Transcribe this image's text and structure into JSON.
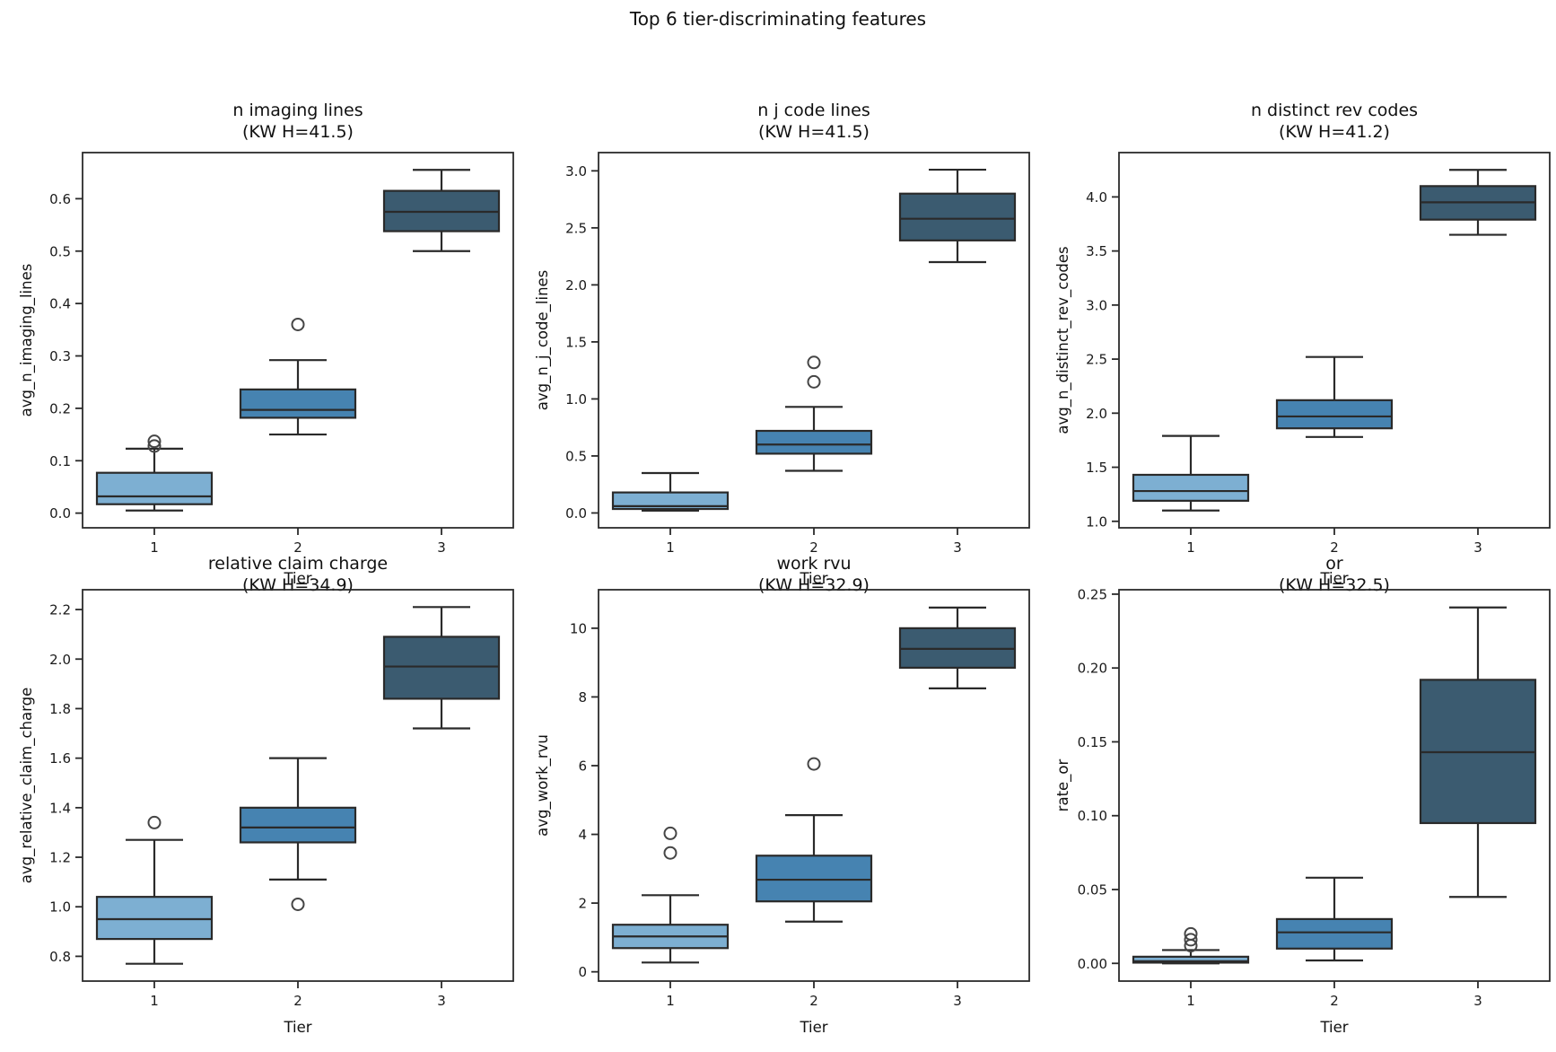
{
  "figure": {
    "title": "Top 6 tier-discriminating features",
    "background": "#ffffff",
    "text_color": "#1a1a1a",
    "spine_color": "#2b2b2b"
  },
  "chart_data": {
    "type": "box",
    "suptitle": "Top 6 tier-discriminating features",
    "layout": "2x3 grid",
    "categories": [
      "1",
      "2",
      "3"
    ],
    "xlabel": "Tier",
    "palette": [
      "#7dafd2",
      "#4683b1",
      "#3b5b70"
    ],
    "edge_color": "#2a2a2a",
    "flier_color": "#454545",
    "grid": false,
    "plots": [
      {
        "title": "n imaging lines",
        "subtitle": "(KW H=41.5)",
        "kw_h": 41.5,
        "ylabel": "avg_n_imaging_lines",
        "xlabel": "Tier",
        "ylim": [
          -0.028,
          0.688
        ],
        "yticks": [
          0.0,
          0.1,
          0.2,
          0.3,
          0.4,
          0.5,
          0.6
        ],
        "ytick_labels": [
          "0.0",
          "0.1",
          "0.2",
          "0.3",
          "0.4",
          "0.5",
          "0.6"
        ],
        "boxes": [
          {
            "category": "1",
            "whislo": 0.005,
            "q1": 0.017,
            "med": 0.032,
            "q3": 0.077,
            "whishi": 0.123,
            "outliers": [
              0.128,
              0.137
            ]
          },
          {
            "category": "2",
            "whislo": 0.15,
            "q1": 0.182,
            "med": 0.197,
            "q3": 0.236,
            "whishi": 0.292,
            "outliers": [
              0.36
            ]
          },
          {
            "category": "3",
            "whislo": 0.5,
            "q1": 0.538,
            "med": 0.575,
            "q3": 0.615,
            "whishi": 0.655,
            "outliers": []
          }
        ]
      },
      {
        "title": "n j code lines",
        "subtitle": "(KW H=41.5)",
        "kw_h": 41.5,
        "ylabel": "avg_n_j_code_lines",
        "xlabel": "Tier",
        "ylim": [
          -0.13,
          3.16
        ],
        "yticks": [
          0.0,
          0.5,
          1.0,
          1.5,
          2.0,
          2.5,
          3.0
        ],
        "ytick_labels": [
          "0.0",
          "0.5",
          "1.0",
          "1.5",
          "2.0",
          "2.5",
          "3.0"
        ],
        "boxes": [
          {
            "category": "1",
            "whislo": 0.02,
            "q1": 0.035,
            "med": 0.06,
            "q3": 0.18,
            "whishi": 0.35,
            "outliers": []
          },
          {
            "category": "2",
            "whislo": 0.37,
            "q1": 0.52,
            "med": 0.6,
            "q3": 0.72,
            "whishi": 0.93,
            "outliers": [
              1.15,
              1.32
            ]
          },
          {
            "category": "3",
            "whislo": 2.2,
            "q1": 2.39,
            "med": 2.58,
            "q3": 2.8,
            "whishi": 3.01,
            "outliers": []
          }
        ]
      },
      {
        "title": "n distinct rev codes",
        "subtitle": "(KW H=41.2)",
        "kw_h": 41.2,
        "ylabel": "avg_n_distinct_rev_codes",
        "xlabel": "Tier",
        "ylim": [
          0.94,
          4.41
        ],
        "yticks": [
          1.0,
          1.5,
          2.0,
          2.5,
          3.0,
          3.5,
          4.0
        ],
        "ytick_labels": [
          "1.0",
          "1.5",
          "2.0",
          "2.5",
          "3.0",
          "3.5",
          "4.0"
        ],
        "boxes": [
          {
            "category": "1",
            "whislo": 1.1,
            "q1": 1.19,
            "med": 1.28,
            "q3": 1.43,
            "whishi": 1.79,
            "outliers": []
          },
          {
            "category": "2",
            "whislo": 1.78,
            "q1": 1.86,
            "med": 1.97,
            "q3": 2.12,
            "whishi": 2.52,
            "outliers": []
          },
          {
            "category": "3",
            "whislo": 3.65,
            "q1": 3.79,
            "med": 3.95,
            "q3": 4.1,
            "whishi": 4.25,
            "outliers": []
          }
        ]
      },
      {
        "title": "relative claim charge",
        "subtitle": "(KW H=34.9)",
        "kw_h": 34.9,
        "ylabel": "avg_relative_claim_charge",
        "xlabel": "Tier",
        "ylim": [
          0.7,
          2.28
        ],
        "yticks": [
          0.8,
          1.0,
          1.2,
          1.4,
          1.6,
          1.8,
          2.0,
          2.2
        ],
        "ytick_labels": [
          "0.8",
          "1.0",
          "1.2",
          "1.4",
          "1.6",
          "1.8",
          "2.0",
          "2.2"
        ],
        "boxes": [
          {
            "category": "1",
            "whislo": 0.77,
            "q1": 0.87,
            "med": 0.95,
            "q3": 1.04,
            "whishi": 1.27,
            "outliers": [
              1.34
            ]
          },
          {
            "category": "2",
            "whislo": 1.11,
            "q1": 1.26,
            "med": 1.32,
            "q3": 1.4,
            "whishi": 1.6,
            "outliers": [
              1.01
            ]
          },
          {
            "category": "3",
            "whislo": 1.72,
            "q1": 1.84,
            "med": 1.97,
            "q3": 2.09,
            "whishi": 2.21,
            "outliers": []
          }
        ]
      },
      {
        "title": "work rvu",
        "subtitle": "(KW H=32.9)",
        "kw_h": 32.9,
        "ylabel": "avg_work_rvu",
        "xlabel": "Tier",
        "ylim": [
          -0.27,
          11.12
        ],
        "yticks": [
          0,
          2,
          4,
          6,
          8,
          10
        ],
        "ytick_labels": [
          "0",
          "2",
          "4",
          "6",
          "8",
          "10"
        ],
        "boxes": [
          {
            "category": "1",
            "whislo": 0.27,
            "q1": 0.69,
            "med": 1.03,
            "q3": 1.37,
            "whishi": 2.23,
            "outliers": [
              3.46,
              4.03
            ]
          },
          {
            "category": "2",
            "whislo": 1.46,
            "q1": 2.05,
            "med": 2.68,
            "q3": 3.38,
            "whishi": 4.56,
            "outliers": [
              6.05
            ]
          },
          {
            "category": "3",
            "whislo": 8.25,
            "q1": 8.85,
            "med": 9.4,
            "q3": 10.0,
            "whishi": 10.6,
            "outliers": []
          }
        ]
      },
      {
        "title": "or",
        "subtitle": "(KW H=32.5)",
        "kw_h": 32.5,
        "ylabel": "rate_or",
        "xlabel": "Tier",
        "ylim": [
          -0.012,
          0.253
        ],
        "yticks": [
          0.0,
          0.05,
          0.1,
          0.15,
          0.2,
          0.25
        ],
        "ytick_labels": [
          "0.00",
          "0.05",
          "0.10",
          "0.15",
          "0.20",
          "0.25"
        ],
        "boxes": [
          {
            "category": "1",
            "whislo": 0.0,
            "q1": 0.0005,
            "med": 0.0015,
            "q3": 0.0045,
            "whishi": 0.009,
            "outliers": [
              0.012,
              0.016,
              0.02
            ]
          },
          {
            "category": "2",
            "whislo": 0.002,
            "q1": 0.01,
            "med": 0.021,
            "q3": 0.03,
            "whishi": 0.058,
            "outliers": []
          },
          {
            "category": "3",
            "whislo": 0.045,
            "q1": 0.095,
            "med": 0.143,
            "q3": 0.192,
            "whishi": 0.241,
            "outliers": []
          }
        ]
      }
    ]
  }
}
